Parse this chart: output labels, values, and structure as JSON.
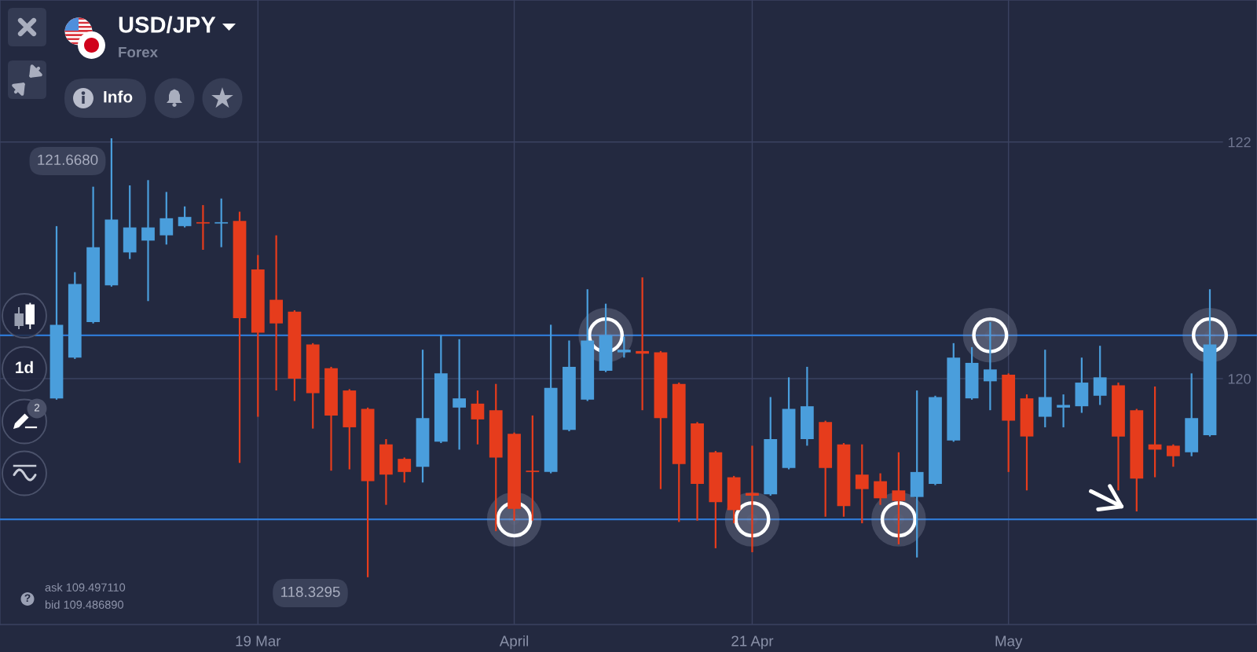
{
  "chart_data": {
    "type": "candlestick",
    "title": "USD/JPY",
    "subtitle": "Forex",
    "categories": [
      null,
      null,
      null,
      null,
      null,
      null,
      null,
      null,
      null,
      null,
      null,
      "19 Mar",
      null,
      null,
      null,
      null,
      null,
      null,
      null,
      null,
      null,
      null,
      null,
      null,
      null,
      "April",
      null,
      null,
      null,
      null,
      null,
      null,
      null,
      null,
      null,
      null,
      null,
      null,
      "21 Apr",
      null,
      null,
      null,
      null,
      null,
      null,
      null,
      null,
      null,
      null,
      null,
      null,
      null,
      "May",
      null,
      null,
      null,
      null,
      null,
      null,
      null,
      null,
      null,
      null,
      null
    ],
    "ohlc": [
      [
        119.69,
        121.0,
        119.68,
        120.25
      ],
      [
        120.0,
        120.65,
        119.99,
        120.56
      ],
      [
        120.27,
        121.3,
        120.26,
        120.84
      ],
      [
        120.55,
        121.668,
        120.54,
        121.05
      ],
      [
        120.8,
        121.31,
        120.75,
        120.99
      ],
      [
        120.89,
        121.35,
        120.43,
        120.99
      ],
      [
        120.93,
        121.26,
        120.86,
        121.06
      ],
      [
        121.0,
        121.15,
        120.99,
        121.07
      ],
      [
        121.03,
        121.16,
        120.82,
        121.02
      ],
      [
        121.02,
        121.21,
        120.84,
        121.03
      ],
      [
        121.04,
        121.11,
        119.2,
        120.3
      ],
      [
        120.67,
        120.78,
        119.55,
        120.19
      ],
      [
        120.44,
        120.93,
        119.75,
        120.26
      ],
      [
        120.35,
        120.36,
        119.67,
        119.84
      ],
      [
        120.1,
        120.11,
        119.46,
        119.73
      ],
      [
        119.92,
        119.93,
        119.14,
        119.56
      ],
      [
        119.75,
        119.76,
        119.15,
        119.47
      ],
      [
        119.61,
        119.62,
        118.3295,
        119.06
      ],
      [
        119.34,
        119.38,
        118.88,
        119.11
      ],
      [
        119.23,
        119.24,
        119.05,
        119.13
      ],
      [
        119.17,
        120.06,
        119.05,
        119.54
      ],
      [
        119.36,
        120.17,
        119.35,
        119.88
      ],
      [
        119.62,
        120.14,
        119.3,
        119.69
      ],
      [
        119.65,
        119.75,
        119.34,
        119.53
      ],
      [
        119.6,
        119.8,
        118.68,
        119.24
      ],
      [
        119.42,
        119.43,
        118.76,
        118.85
      ],
      [
        119.14,
        119.56,
        118.76,
        119.13
      ],
      [
        119.13,
        120.25,
        119.12,
        119.77
      ],
      [
        119.45,
        120.13,
        119.44,
        119.93
      ],
      [
        119.68,
        120.52,
        119.67,
        120.13
      ],
      [
        119.9,
        120.41,
        119.89,
        120.17
      ],
      [
        120.04,
        120.16,
        120.0,
        120.06
      ],
      [
        120.05,
        120.61,
        119.6,
        120.03
      ],
      [
        120.04,
        120.05,
        119.0,
        119.54
      ],
      [
        119.8,
        119.81,
        118.75,
        119.19
      ],
      [
        119.5,
        119.51,
        118.76,
        119.04
      ],
      [
        119.28,
        119.29,
        118.55,
        118.9
      ],
      [
        119.09,
        119.1,
        118.74,
        118.84
      ],
      [
        118.97,
        119.33,
        118.52,
        118.95
      ],
      [
        118.96,
        119.7,
        118.95,
        119.38
      ],
      [
        119.16,
        119.85,
        119.15,
        119.61
      ],
      [
        119.38,
        119.93,
        119.33,
        119.63
      ],
      [
        119.51,
        119.52,
        118.79,
        119.16
      ],
      [
        119.34,
        119.35,
        118.79,
        118.87
      ],
      [
        119.11,
        119.34,
        118.74,
        119.0
      ],
      [
        119.06,
        119.12,
        118.88,
        118.93
      ],
      [
        118.99,
        119.28,
        118.58,
        118.91
      ],
      [
        118.94,
        119.75,
        118.48,
        119.13
      ],
      [
        119.04,
        119.71,
        119.03,
        119.7
      ],
      [
        119.37,
        120.11,
        119.36,
        120.0
      ],
      [
        119.69,
        120.08,
        119.68,
        119.96
      ],
      [
        119.82,
        120.27,
        119.6,
        119.91
      ],
      [
        119.87,
        119.88,
        119.13,
        119.52
      ],
      [
        119.69,
        119.72,
        118.99,
        119.4
      ],
      [
        119.55,
        120.06,
        119.47,
        119.7
      ],
      [
        119.62,
        119.72,
        119.47,
        119.64
      ],
      [
        119.63,
        120.0,
        119.58,
        119.81
      ],
      [
        119.71,
        120.09,
        119.64,
        119.85
      ],
      [
        119.79,
        119.81,
        118.99,
        119.4
      ],
      [
        119.6,
        119.61,
        118.83,
        119.08
      ],
      [
        119.34,
        119.78,
        119.09,
        119.3
      ],
      [
        119.33,
        119.34,
        119.17,
        119.25
      ],
      [
        119.28,
        119.88,
        119.25,
        119.54
      ],
      [
        119.41,
        120.52,
        119.4,
        120.1
      ]
    ],
    "colors": [
      "#4a9edc",
      "#4a9edc",
      "#4a9edc",
      "#4a9edc",
      "#4a9edc",
      "#4a9edc",
      "#4a9edc",
      "#4a9edc",
      "#e63c1c",
      "#4a9edc",
      "#e63c1c",
      "#e63c1c",
      "#e63c1c",
      "#e63c1c",
      "#e63c1c",
      "#e63c1c",
      "#e63c1c",
      "#e63c1c",
      "#e63c1c",
      "#e63c1c",
      "#4a9edc",
      "#4a9edc",
      "#4a9edc",
      "#e63c1c",
      "#e63c1c",
      "#e63c1c",
      "#e63c1c",
      "#4a9edc",
      "#4a9edc",
      "#4a9edc",
      "#4a9edc",
      "#4a9edc",
      "#e63c1c",
      "#e63c1c",
      "#e63c1c",
      "#e63c1c",
      "#e63c1c",
      "#e63c1c",
      "#e63c1c",
      "#4a9edc",
      "#4a9edc",
      "#4a9edc",
      "#e63c1c",
      "#e63c1c",
      "#e63c1c",
      "#e63c1c",
      "#e63c1c",
      "#4a9edc",
      "#4a9edc",
      "#4a9edc",
      "#4a9edc",
      "#4a9edc",
      "#e63c1c",
      "#e63c1c",
      "#4a9edc",
      "#4a9edc",
      "#4a9edc",
      "#4a9edc",
      "#e63c1c",
      "#e63c1c",
      "#e63c1c",
      "#e63c1c",
      "#4a9edc",
      "#4a9edc"
    ],
    "series": [
      {
        "type": "scatter",
        "color": "#ffffff",
        "marker": "circle",
        "values": [
          null,
          null,
          null,
          null,
          null,
          null,
          null,
          null,
          null,
          null,
          null,
          null,
          null,
          null,
          null,
          null,
          null,
          null,
          null,
          null,
          null,
          null,
          null,
          null,
          null,
          118.77,
          null,
          null,
          null,
          null,
          120.17,
          null,
          null,
          null,
          null,
          null,
          null,
          null,
          118.77,
          null,
          null,
          null,
          null,
          null,
          null,
          null,
          118.77,
          null,
          null,
          null,
          null,
          120.17,
          null,
          null,
          null,
          null,
          null,
          null,
          null,
          null,
          null,
          null,
          null,
          120.17
        ]
      }
    ],
    "ref_lines": [
      {
        "axis": "y",
        "value": 120.17,
        "color": "#2e78d2"
      },
      {
        "axis": "y",
        "value": 118.77,
        "color": "#2e78d2"
      }
    ],
    "ylim": [
      117.97,
      122.72
    ],
    "yticks": [
      {
        "value": 121.64,
        "label": "122"
      },
      {
        "value": 119.84,
        "label": "120"
      }
    ],
    "grid": true,
    "annotations": [
      "121.6680",
      "118.3295",
      "Info",
      "1d",
      "2",
      "?",
      "ask 109.497110",
      "bid 109.486890"
    ]
  }
}
